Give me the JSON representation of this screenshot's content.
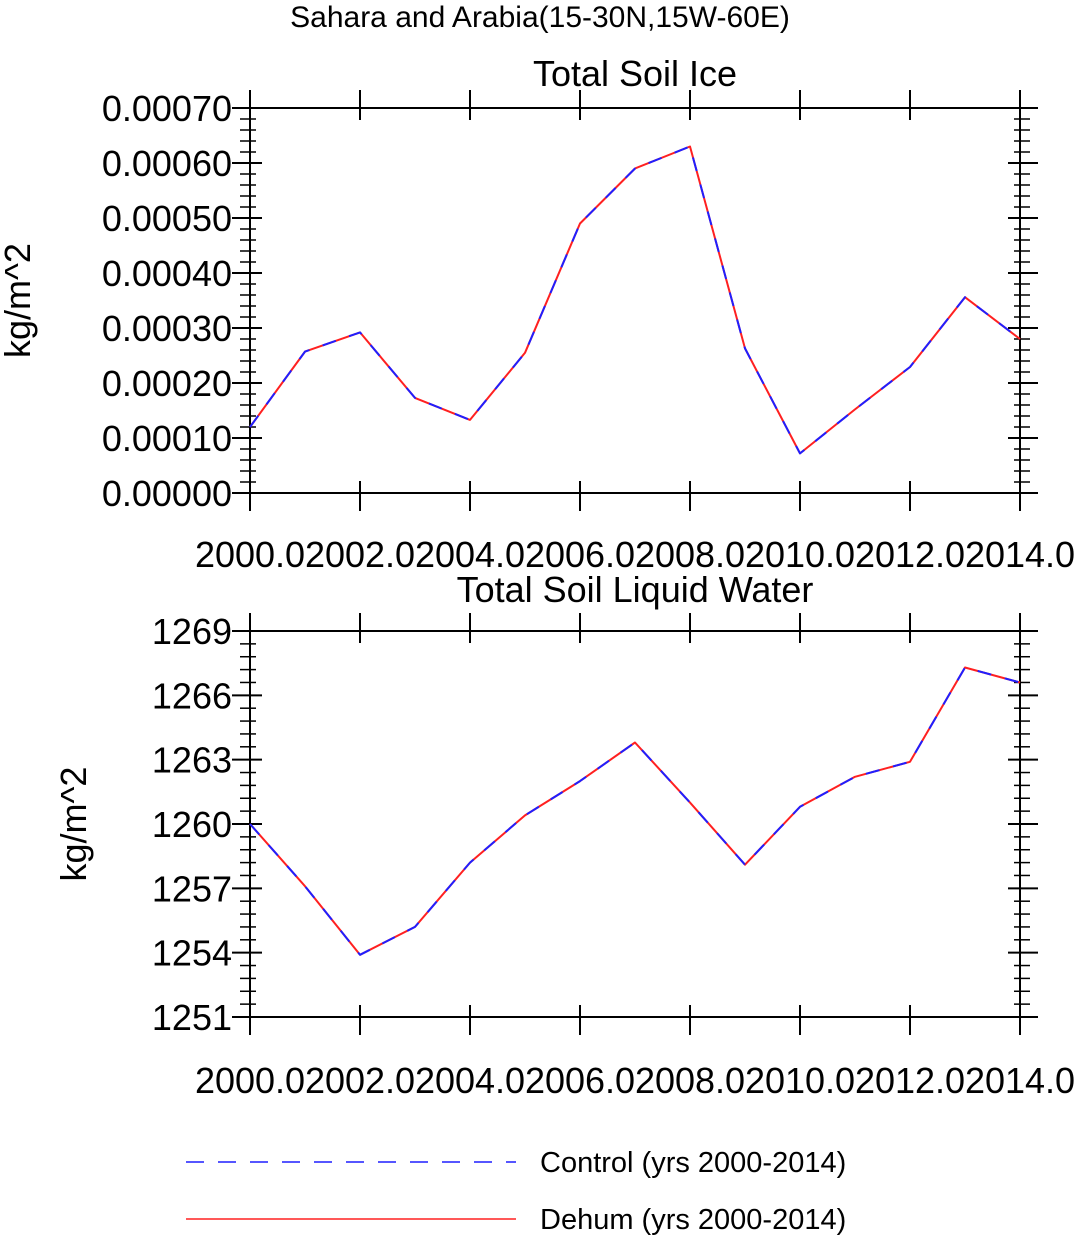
{
  "figure_title": "Sahara and Arabia(15-30N,15W-60E)",
  "colors": {
    "series_0": "#1f1fff",
    "series_1": "#ff2020",
    "axis": "#000000"
  },
  "legend": {
    "placement": "bottom",
    "entries": [
      {
        "label": "Control (yrs 2000-2014)",
        "style": "dashed",
        "color": "#1f1fff"
      },
      {
        "label": "Dehum (yrs 2000-2014)",
        "style": "solid",
        "color": "#ff2020"
      }
    ]
  },
  "chart_data": [
    {
      "type": "line",
      "title": "Total Soil Ice",
      "xlabel": "",
      "ylabel": "kg/m^2",
      "xlim": [
        2000,
        2014
      ],
      "ylim": [
        0,
        0.0007
      ],
      "xticks": [
        "2000.0",
        "2002.0",
        "2004.0",
        "2006.0",
        "2008.0",
        "2010.0",
        "2012.0",
        "2014.0"
      ],
      "yticks": [
        "0.00000",
        "0.00010",
        "0.00020",
        "0.00030",
        "0.00040",
        "0.00050",
        "0.00060",
        "0.00070"
      ],
      "x": [
        2000,
        2001,
        2002,
        2003,
        2004,
        2005,
        2006,
        2007,
        2008,
        2009,
        2010,
        2011,
        2012,
        2013,
        2014
      ],
      "series": [
        {
          "name": "Control (yrs 2000-2014)",
          "values": [
            0.00012,
            0.000257,
            0.000292,
            0.000173,
            0.000133,
            0.000255,
            0.00049,
            0.00059,
            0.00063,
            0.000263,
            7.2e-05,
            0.000152,
            0.000229,
            0.000356,
            0.00028
          ]
        },
        {
          "name": "Dehum (yrs 2000-2014)",
          "values": [
            0.00012,
            0.000257,
            0.000292,
            0.000173,
            0.000133,
            0.000255,
            0.00049,
            0.00059,
            0.00063,
            0.000263,
            7.2e-05,
            0.000152,
            0.000229,
            0.000356,
            0.00028
          ]
        }
      ]
    },
    {
      "type": "line",
      "title": "Total Soil Liquid Water",
      "xlabel": "",
      "ylabel": "kg/m^2",
      "xlim": [
        2000,
        2014
      ],
      "ylim": [
        1251,
        1269
      ],
      "xticks": [
        "2000.0",
        "2002.0",
        "2004.0",
        "2006.0",
        "2008.0",
        "2010.0",
        "2012.0",
        "2014.0"
      ],
      "yticks": [
        "1251",
        "1254",
        "1257",
        "1260",
        "1263",
        "1266",
        "1269"
      ],
      "x": [
        2000,
        2001,
        2002,
        2003,
        2004,
        2005,
        2006,
        2007,
        2008,
        2009,
        2010,
        2011,
        2012,
        2013,
        2014
      ],
      "series": [
        {
          "name": "Control (yrs 2000-2014)",
          "values": [
            1260.0,
            1257.1,
            1253.9,
            1255.2,
            1258.2,
            1260.4,
            1262.0,
            1263.8,
            1261.0,
            1258.1,
            1260.8,
            1262.2,
            1262.9,
            1267.3,
            1266.6
          ]
        },
        {
          "name": "Dehum (yrs 2000-2014)",
          "values": [
            1260.0,
            1257.1,
            1253.9,
            1255.2,
            1258.2,
            1260.4,
            1262.0,
            1263.8,
            1261.0,
            1258.1,
            1260.8,
            1262.2,
            1262.9,
            1267.3,
            1266.6
          ]
        }
      ]
    }
  ]
}
